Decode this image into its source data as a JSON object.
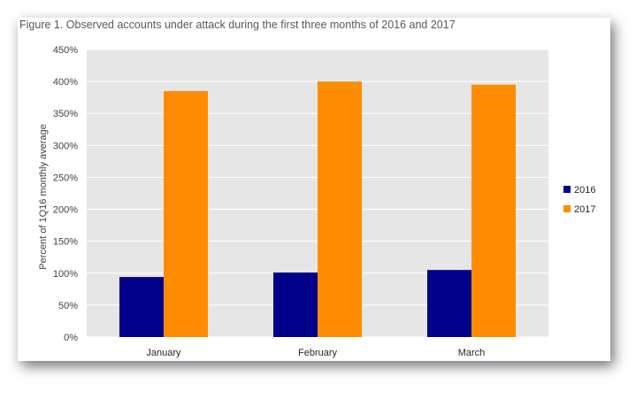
{
  "figure_title": "Figure 1. Observed accounts under attack during the first three months of 2016 and 2017",
  "chart_data": {
    "type": "bar",
    "title": "Figure 1. Observed accounts under attack during the first three months of 2016 and 2017",
    "xlabel": "",
    "ylabel": "Percent of 1Q16 monthly average",
    "categories": [
      "January",
      "February",
      "March"
    ],
    "series": [
      {
        "name": "2016",
        "color": "#00008B",
        "values": [
          94,
          101,
          105
        ]
      },
      {
        "name": "2017",
        "color": "#FF8C00",
        "values": [
          385,
          400,
          395
        ]
      }
    ],
    "ylim": [
      0,
      450
    ],
    "yticks": [
      0,
      50,
      100,
      150,
      200,
      250,
      300,
      350,
      400,
      450
    ],
    "ytick_labels": [
      "0%",
      "50%",
      "100%",
      "150%",
      "200%",
      "250%",
      "300%",
      "350%",
      "400%",
      "450%"
    ],
    "grid": true,
    "legend_position": "right",
    "plot_background": "#E6E6E6"
  }
}
